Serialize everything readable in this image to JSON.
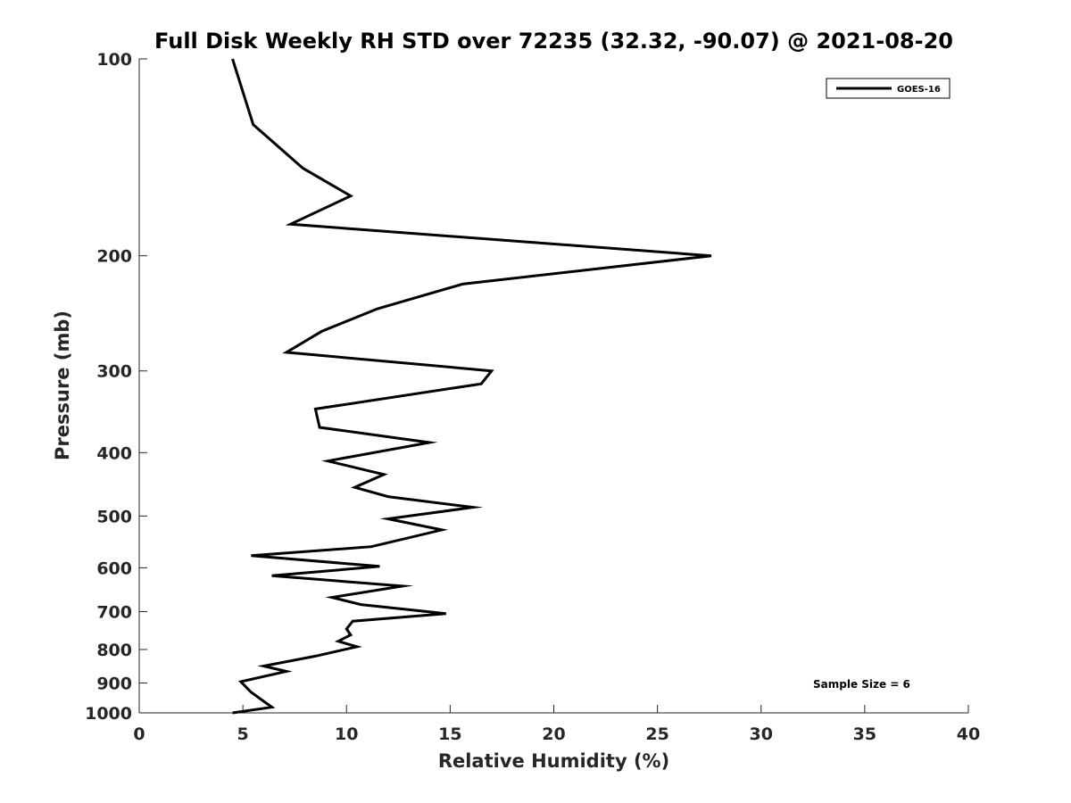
{
  "chart_data": {
    "type": "line",
    "title": "Full Disk Weekly RH STD over 72235 (32.32, -90.07) @ 2021-08-20",
    "xlabel": "Relative Humidity (%)",
    "ylabel": "Pressure (mb)",
    "xlim": [
      0,
      40
    ],
    "ylim": [
      100,
      1000
    ],
    "y_scale": "log",
    "y_reversed": true,
    "xticks": [
      0,
      5,
      10,
      15,
      20,
      25,
      30,
      35,
      40
    ],
    "yticks": [
      100,
      200,
      300,
      400,
      500,
      600,
      700,
      800,
      900,
      1000
    ],
    "grid": false,
    "legend_position": "top-right",
    "line_color": "#000000",
    "annotation": "Sample Size = 6",
    "series": [
      {
        "name": "GOES-16",
        "x": [
          4.5,
          5.5,
          7.9,
          10.2,
          7.3,
          27.6,
          15.6,
          11.5,
          8.8,
          7.1,
          17.0,
          16.5,
          8.5,
          8.7,
          14.0,
          9.1,
          11.8,
          10.4,
          12.0,
          16.1,
          12.0,
          14.6,
          11.2,
          5.4,
          11.6,
          6.4,
          12.7,
          9.3,
          10.7,
          14.8,
          10.3,
          10.0,
          10.2,
          9.6,
          10.5,
          8.5,
          6.0,
          7.1,
          4.9,
          5.4,
          6.4,
          4.5
        ],
        "y": [
          100,
          126,
          147,
          162,
          179,
          200,
          221,
          241,
          261,
          281,
          300,
          314,
          343,
          366,
          386,
          412,
          432,
          452,
          467,
          485,
          505,
          525,
          557,
          575,
          597,
          617,
          640,
          666,
          683,
          705,
          724,
          744,
          760,
          777,
          792,
          819,
          848,
          864,
          896,
          930,
          980,
          1000
        ]
      }
    ]
  }
}
